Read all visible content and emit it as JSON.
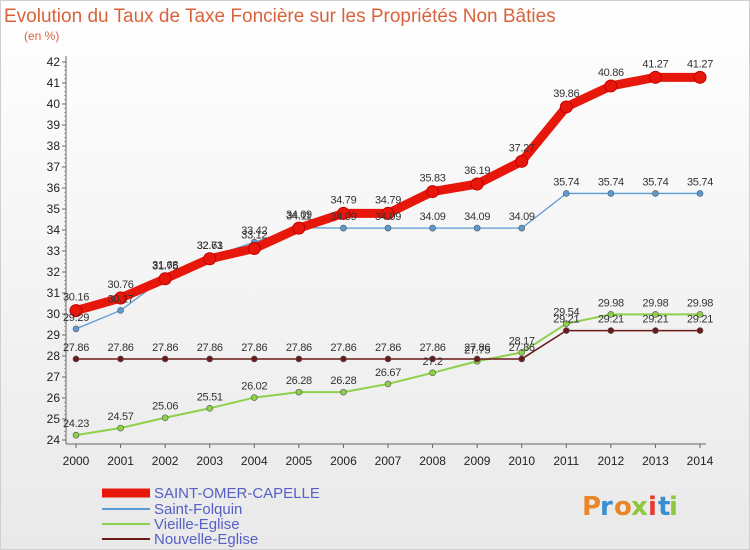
{
  "chart_data": {
    "type": "line",
    "title": "Evolution du Taux de Taxe Foncière sur les Propriétés Non Bâties",
    "subtitle": "(en %)",
    "x": [
      "2000",
      "2001",
      "2002",
      "2003",
      "2004",
      "2005",
      "2006",
      "2007",
      "2008",
      "2009",
      "2010",
      "2011",
      "2012",
      "2013",
      "2014"
    ],
    "ylim": [
      24,
      42
    ],
    "yticks": [
      24,
      25,
      26,
      27,
      28,
      29,
      30,
      31,
      32,
      33,
      34,
      35,
      36,
      37,
      38,
      39,
      40,
      41,
      42
    ],
    "grid": false,
    "legend_position": "bottom-left",
    "series": [
      {
        "name": "SAINT-OMER-CAPELLE",
        "color": "#e8170c",
        "values": [
          30.16,
          30.76,
          31.68,
          32.63,
          33.12,
          34.09,
          34.79,
          34.79,
          35.83,
          36.19,
          37.27,
          39.86,
          40.86,
          41.27,
          41.27
        ],
        "labels": [
          "30.16",
          "30.76",
          "31.68",
          "32.63",
          "33.12",
          "34.09",
          "34.79",
          "34.79",
          "35.83",
          "36.19",
          "37.27",
          "39.86",
          "40.86",
          "41.27",
          "41.27"
        ]
      },
      {
        "name": "Saint-Folquin",
        "color": "#5b9bd5",
        "values": [
          29.29,
          30.17,
          31.75,
          32.71,
          33.42,
          34.11,
          34.09,
          34.09,
          34.09,
          34.09,
          34.09,
          35.74,
          35.74,
          35.74,
          35.74
        ],
        "labels": [
          "29.29",
          "30.17",
          "31.75",
          "32.71",
          "33.42",
          "34.11",
          "34.09",
          "34.09",
          "34.09",
          "34.09",
          "34.09",
          "35.74",
          "35.74",
          "35.74",
          "35.74"
        ]
      },
      {
        "name": "Vieille-Eglise",
        "color": "#8ed04a",
        "values": [
          24.23,
          24.57,
          25.06,
          25.51,
          26.02,
          26.28,
          26.28,
          26.67,
          27.2,
          27.75,
          28.17,
          29.54,
          29.98,
          29.98,
          29.98
        ],
        "labels": [
          "24.23",
          "24.57",
          "25.06",
          "25.51",
          "26.02",
          "26.28",
          "26.28",
          "26.67",
          "27.2",
          "27.75",
          "28.17",
          "29.54",
          "29.98",
          "29.98",
          "29.98"
        ]
      },
      {
        "name": "Nouvelle-Eglise",
        "color": "#6b1a1a",
        "values": [
          27.86,
          27.86,
          27.86,
          27.86,
          27.86,
          27.86,
          27.86,
          27.86,
          27.86,
          27.86,
          27.86,
          29.21,
          29.21,
          29.21,
          29.21
        ],
        "labels": [
          "27.86",
          "27.86",
          "27.86",
          "27.86",
          "27.86",
          "27.86",
          "27.86",
          "27.86",
          "27.86",
          "27.86",
          "27.86",
          "29.21",
          "29.21",
          "29.21",
          "29.21"
        ]
      }
    ]
  },
  "logo": {
    "letters": [
      "P",
      "r",
      "o",
      "x",
      "i",
      "t",
      "i"
    ],
    "colors": [
      "#e8862a",
      "#3a8fd0",
      "#e8862a",
      "#8ec63f",
      "#e63b2e",
      "#3a8fd0",
      "#8ec63f"
    ]
  }
}
